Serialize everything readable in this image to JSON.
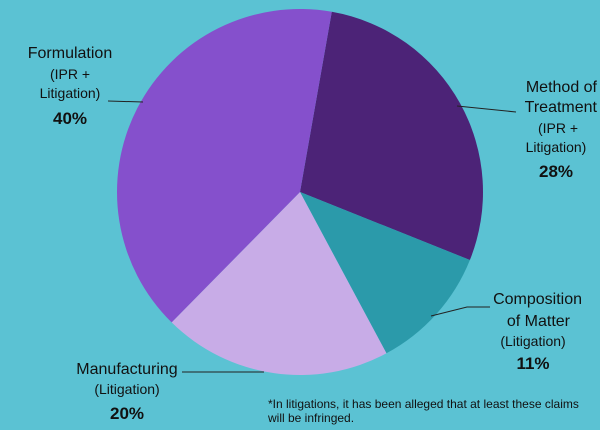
{
  "chart_data": {
    "type": "pie",
    "slices": [
      {
        "label": "Method of Treatment",
        "sublabel": "(IPR + Litigation)",
        "value": 28,
        "display": "28%",
        "color": "#4c2377"
      },
      {
        "label": "Composition of Matter",
        "sublabel": "(Litigation)",
        "value": 11,
        "display": "11%",
        "color": "#2b9aaa"
      },
      {
        "label": "Manufacturing",
        "sublabel": "(Litigation)",
        "value": 20,
        "display": "20%",
        "color": "#c8ace7"
      },
      {
        "label": "Formulation",
        "sublabel": "(IPR + Litigation)",
        "value": 40,
        "display": "40%",
        "color": "#8550cc"
      }
    ],
    "footnote": "*In litigations, it has been alleged that at least these claims will be infringed."
  }
}
